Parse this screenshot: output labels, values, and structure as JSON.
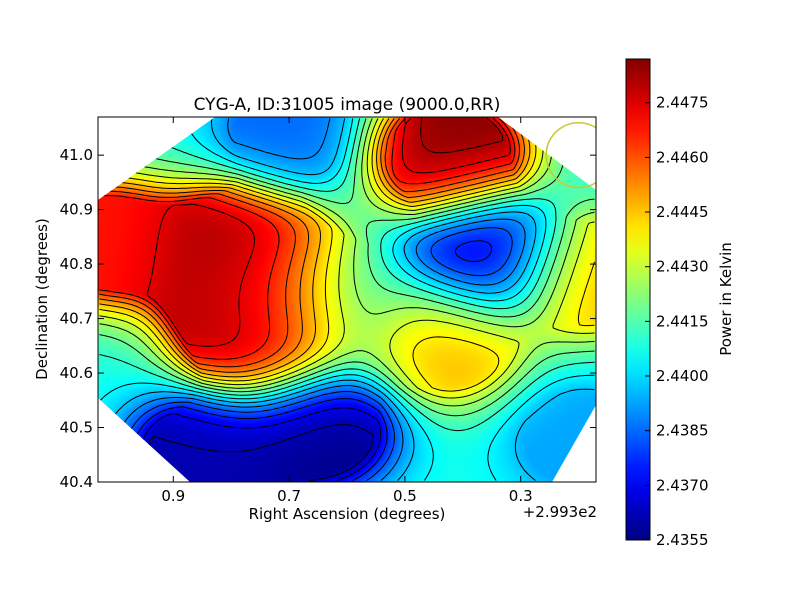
{
  "chart_data": {
    "type": "heatmap",
    "title": "CYG-A, ID:31005 image (9000.0,RR)",
    "xlabel": "Right Ascension (degrees)",
    "ylabel": "Declination (degrees)",
    "x_offset_label": "+2.993e2",
    "x_range": [
      1.03,
      0.17
    ],
    "y_range": [
      40.4,
      41.07
    ],
    "x_ticks": [
      {
        "value": 0.9,
        "label": "0.9"
      },
      {
        "value": 0.7,
        "label": "0.7"
      },
      {
        "value": 0.5,
        "label": "0.5"
      },
      {
        "value": 0.3,
        "label": "0.3"
      }
    ],
    "y_ticks": [
      {
        "value": 40.4,
        "label": "40.4"
      },
      {
        "value": 40.5,
        "label": "40.5"
      },
      {
        "value": 40.6,
        "label": "40.6"
      },
      {
        "value": 40.7,
        "label": "40.7"
      },
      {
        "value": 40.8,
        "label": "40.8"
      },
      {
        "value": 40.9,
        "label": "40.9"
      },
      {
        "value": 41.0,
        "label": "41.0"
      }
    ],
    "colorbar": {
      "label": "Power in Kelvin",
      "range": [
        2.4355,
        2.4487
      ],
      "colormap": "jet",
      "ticks": [
        {
          "value": 2.4355,
          "label": "2.4355"
        },
        {
          "value": 2.437,
          "label": "2.4370"
        },
        {
          "value": 2.4385,
          "label": "2.4385"
        },
        {
          "value": 2.44,
          "label": "2.4400"
        },
        {
          "value": 2.4415,
          "label": "2.4415"
        },
        {
          "value": 2.443,
          "label": "2.4430"
        },
        {
          "value": 2.4445,
          "label": "2.4445"
        },
        {
          "value": 2.446,
          "label": "2.4460"
        },
        {
          "value": 2.4475,
          "label": "2.4475"
        }
      ]
    },
    "field_peaks": [
      {
        "ra": 0.42,
        "dec": 41.0,
        "value": 2.4486
      },
      {
        "ra": 0.8,
        "dec": 40.82,
        "value": 2.4485
      },
      {
        "ra": 0.75,
        "dec": 40.67,
        "value": 2.4484
      },
      {
        "ra": 1.02,
        "dec": 40.84,
        "value": 2.4468
      },
      {
        "ra": 0.75,
        "dec": 40.76,
        "value": 2.4472
      },
      {
        "ra": 0.43,
        "dec": 40.66,
        "value": 2.4448
      },
      {
        "ra": 0.19,
        "dec": 40.78,
        "value": 2.4447
      },
      {
        "ra": 0.36,
        "dec": 40.82,
        "value": 2.4356
      },
      {
        "ra": 0.65,
        "dec": 40.5,
        "value": 2.4357
      },
      {
        "ra": 0.85,
        "dec": 40.45,
        "value": 2.4361
      },
      {
        "ra": 0.7,
        "dec": 41.04,
        "value": 2.4385
      },
      {
        "ra": 0.62,
        "dec": 40.74,
        "value": 2.4409
      },
      {
        "ra": 0.2,
        "dec": 40.48,
        "value": 2.4393
      }
    ],
    "beam_circle": {
      "ra": 0.2,
      "dec": 41.0,
      "radius_deg": 0.056,
      "color": "#c8c832"
    },
    "contour_levels": [
      2.4362,
      2.4369,
      2.4376,
      2.4383,
      2.439,
      2.4397,
      2.4404,
      2.4411,
      2.4418,
      2.4425,
      2.4432,
      2.4439,
      2.4446,
      2.4453,
      2.446,
      2.4467,
      2.4474,
      2.4481
    ],
    "grid": false
  }
}
